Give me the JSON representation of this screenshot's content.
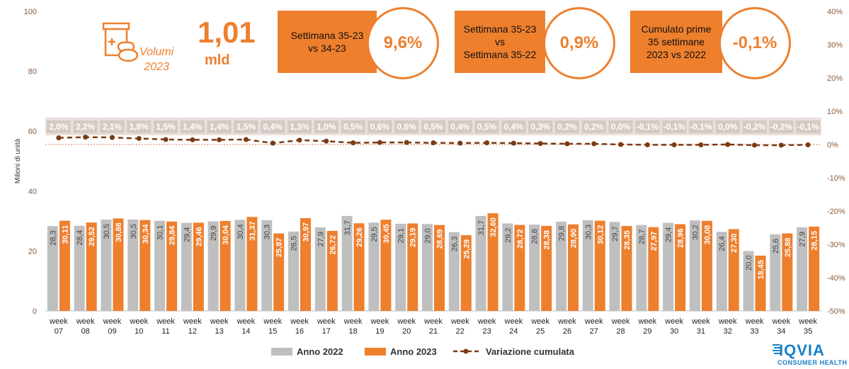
{
  "chart_data": {
    "type": "bar",
    "y_axis_label": "Milioni di unità",
    "ylim": [
      0,
      100
    ],
    "y_ticks": [
      "0",
      "20",
      "40",
      "60",
      "80",
      "100"
    ],
    "y2lim": [
      -50,
      40
    ],
    "y2_ticks": [
      "-50%",
      "-40%",
      "-30%",
      "-20%",
      "-10%",
      "0%",
      "10%",
      "20%",
      "30%",
      "40%"
    ],
    "categories": [
      "week\n07",
      "week\n08",
      "week\n09",
      "week\n10",
      "week\n11",
      "week\n12",
      "week\n13",
      "week\n14",
      "week\n15",
      "week\n16",
      "week\n17",
      "week\n18",
      "week\n19",
      "week\n20",
      "week\n21",
      "week\n22",
      "week\n23",
      "week\n24",
      "week\n25",
      "week\n26",
      "week\n27",
      "week\n28",
      "week\n29",
      "week\n30",
      "week\n31",
      "week\n32",
      "week\n33",
      "week\n34",
      "week\n35"
    ],
    "series": [
      {
        "name": "Anno 2022",
        "color": "#bfbfbf",
        "values": [
          28.3,
          28.4,
          30.5,
          30.5,
          30.1,
          29.4,
          29.9,
          30.4,
          30.3,
          26.5,
          27.9,
          31.7,
          29.5,
          29.1,
          29.0,
          26.3,
          31.7,
          29.2,
          28.8,
          29.8,
          30.3,
          29.7,
          28.7,
          29.4,
          30.2,
          26.4,
          20.0,
          25.6,
          27.9
        ],
        "labels": [
          "28,3",
          "28,4",
          "30,5",
          "30,5",
          "30,1",
          "29,4",
          "29,9",
          "30,4",
          "30,3",
          "26,5",
          "27,9",
          "31,7",
          "29,5",
          "29,1",
          "29,0",
          "26,3",
          "31,7",
          "29,2",
          "28,8",
          "29,8",
          "30,3",
          "29,7",
          "28,7",
          "29,4",
          "30,2",
          "26,4",
          "20,0",
          "25,6",
          "27,9"
        ]
      },
      {
        "name": "Anno 2023",
        "color": "#ee7f2d",
        "values": [
          30.11,
          29.52,
          30.88,
          30.34,
          29.84,
          29.46,
          30.04,
          31.37,
          25.87,
          30.97,
          26.72,
          29.26,
          30.45,
          29.19,
          28.69,
          25.29,
          32.6,
          28.72,
          28.38,
          28.9,
          30.12,
          28.35,
          27.97,
          28.96,
          30.08,
          27.3,
          18.45,
          25.88,
          28.15
        ],
        "labels": [
          "30,11",
          "29,52",
          "30,88",
          "30,34",
          "29,84",
          "29,46",
          "30,04",
          "31,37",
          "25,87",
          "30,97",
          "26,72",
          "29,26",
          "30,45",
          "29,19",
          "28,69",
          "25,29",
          "32,60",
          "28,72",
          "28,38",
          "28,90",
          "30,12",
          "28,35",
          "27,97",
          "28,96",
          "30,08",
          "27,30",
          "18,45",
          "25,88",
          "28,15"
        ]
      },
      {
        "name": "Variazione cumulata",
        "type": "line",
        "color": "#7a3a12",
        "values": [
          2.0,
          2.2,
          2.1,
          1.8,
          1.5,
          1.4,
          1.4,
          1.5,
          0.4,
          1.3,
          1.0,
          0.5,
          0.6,
          0.6,
          0.5,
          0.4,
          0.5,
          0.4,
          0.3,
          0.2,
          0.2,
          0.0,
          -0.1,
          -0.1,
          -0.1,
          0.0,
          -0.2,
          -0.2,
          -0.1
        ],
        "labels": [
          "2,0%",
          "2,2%",
          "2,1%",
          "1,8%",
          "1,5%",
          "1,4%",
          "1,4%",
          "1,5%",
          "0,4%",
          "1,3%",
          "1,0%",
          "0,5%",
          "0,6%",
          "0,6%",
          "0,5%",
          "0,4%",
          "0,5%",
          "0,4%",
          "0,3%",
          "0,2%",
          "0,2%",
          "0,0%",
          "-0,1%",
          "-0,1%",
          "-0,1%",
          "0,0%",
          "-0,2%",
          "-0,2%",
          "-0,1%"
        ]
      }
    ],
    "legend": [
      "Anno 2022",
      "Anno 2023",
      "Variazione cumulata"
    ],
    "legend_position": "bottom",
    "grid": false
  },
  "volumes": {
    "label": "Volumi\n2023",
    "value": "1,01",
    "unit": "mld"
  },
  "kpis": [
    {
      "label": "Settimana 35-23\nvs 34-23",
      "value": "9,6%"
    },
    {
      "label": "Settimana 35-23\nvs\nSettimana 35-22",
      "value": "0,9%"
    },
    {
      "label": "Cumulato prime\n35 settimane\n2023 vs 2022",
      "value": "-0,1%"
    }
  ],
  "brand": {
    "name": "IQVIA",
    "subtitle": "CONSUMER HEALTH",
    "color": "#1a7fc9"
  },
  "colors": {
    "orange": "#ee7f2d",
    "grey": "#bfbfbf",
    "line": "#7a3a12",
    "axis_text": "#8a5a3a"
  }
}
